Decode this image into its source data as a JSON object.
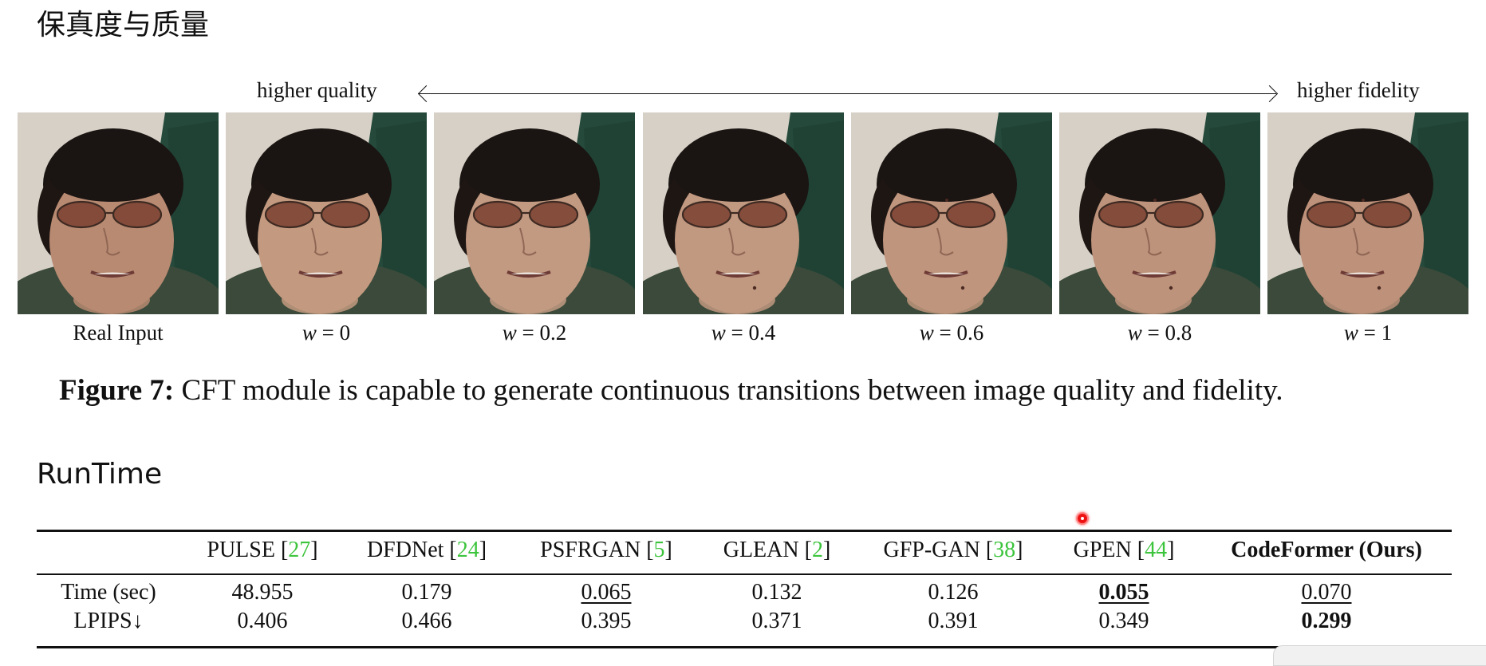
{
  "sections": {
    "fidelity_title": "保真度与质量",
    "runtime_title": "RunTime"
  },
  "figure": {
    "arrow_left_label": "higher quality",
    "arrow_right_label": "higher fidelity",
    "thumbnails": [
      {
        "caption": "Real Input",
        "w": ""
      },
      {
        "caption": "",
        "w": "0"
      },
      {
        "caption": "",
        "w": "0.2"
      },
      {
        "caption": "",
        "w": "0.4"
      },
      {
        "caption": "",
        "w": "0.6"
      },
      {
        "caption": "",
        "w": "0.8"
      },
      {
        "caption": "",
        "w": "1"
      }
    ],
    "caption_label": "Figure 7:",
    "caption_text": "CFT module is capable to generate continuous transitions between image quality and fidelity.",
    "w_symbol": "w",
    "equals": "="
  },
  "table": {
    "columns": [
      {
        "name": "PULSE [",
        "ref": "27",
        "close": "]"
      },
      {
        "name": "DFDNet [",
        "ref": "24",
        "close": "]"
      },
      {
        "name": "PSFRGAN [",
        "ref": "5",
        "close": "]"
      },
      {
        "name": "GLEAN [",
        "ref": "2",
        "close": "]"
      },
      {
        "name": "GFP-GAN [",
        "ref": "38",
        "close": "]"
      },
      {
        "name": "GPEN [",
        "ref": "44",
        "close": "]"
      },
      {
        "name": "CodeFormer (Ours)",
        "ref": "",
        "close": ""
      }
    ],
    "rows": [
      {
        "label": "Time (sec)",
        "values": [
          "48.955",
          "0.179",
          "0.065",
          "0.132",
          "0.126",
          "0.055",
          "0.070"
        ]
      },
      {
        "label": "LPIPS↓",
        "values": [
          "0.406",
          "0.466",
          "0.395",
          "0.371",
          "0.391",
          "0.349",
          "0.299"
        ]
      }
    ]
  },
  "colors": {
    "reference_green": "#3cc43c",
    "cursor_red": "#e11111"
  }
}
